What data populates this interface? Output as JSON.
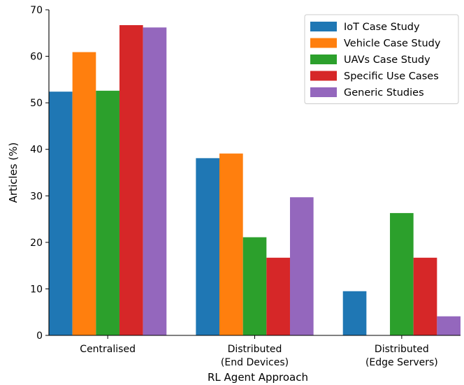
{
  "chart_data": {
    "type": "bar",
    "xlabel": "RL Agent Approach",
    "ylabel": "Articles (%)",
    "ylim": [
      0,
      70
    ],
    "yticks": [
      0,
      10,
      20,
      30,
      40,
      50,
      60,
      70
    ],
    "grid": false,
    "legend_position": "top-right",
    "categories": [
      [
        "Centralised"
      ],
      [
        "Distributed",
        "(End Devices)"
      ],
      [
        "Distributed",
        "(Edge Servers)"
      ]
    ],
    "series": [
      {
        "name": "IoT Case Study",
        "color": "#1f77b4",
        "values": [
          52.4,
          38.1,
          9.5
        ]
      },
      {
        "name": "Vehicle Case Study",
        "color": "#ff7f0e",
        "values": [
          60.9,
          39.1,
          0
        ]
      },
      {
        "name": "UAVs Case Study",
        "color": "#2ca02c",
        "values": [
          52.6,
          21.1,
          26.3
        ]
      },
      {
        "name": "Specific Use Cases",
        "color": "#d62728",
        "values": [
          66.7,
          16.7,
          16.7
        ]
      },
      {
        "name": "Generic Studies",
        "color": "#9467bd",
        "values": [
          66.2,
          29.7,
          4.1
        ]
      }
    ]
  }
}
